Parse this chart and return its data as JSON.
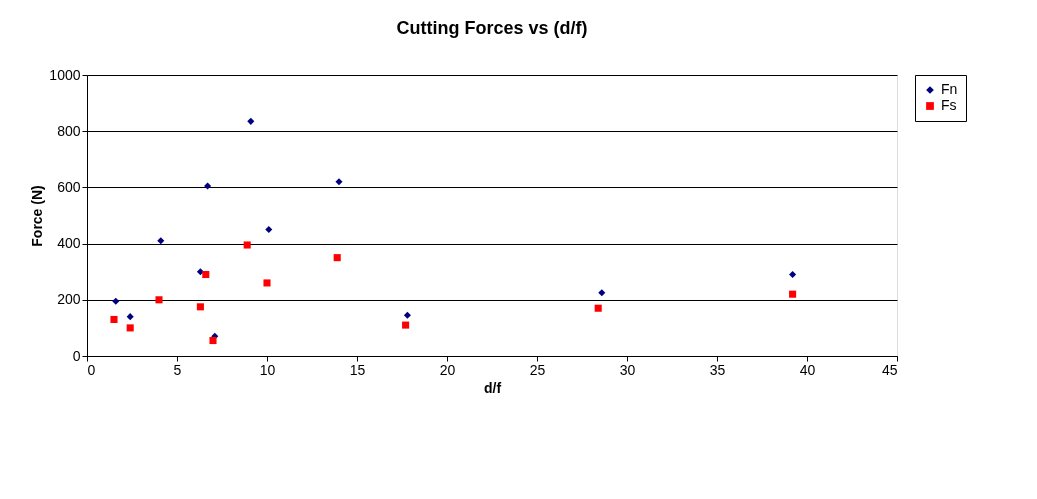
{
  "chart_data": {
    "type": "scatter",
    "title": "Cutting Forces vs (d/f)",
    "xlabel": "d/f",
    "ylabel": "Force (N)",
    "xlim": [
      0,
      45
    ],
    "xticks": [
      0,
      5,
      10,
      15,
      20,
      25,
      30,
      35,
      40,
      45
    ],
    "ylim": [
      0,
      1000
    ],
    "yticks": [
      0,
      200,
      400,
      600,
      800,
      1000
    ],
    "grid": "y",
    "legend": "right",
    "series": [
      {
        "name": "Fn",
        "color": "#000080",
        "marker": "diamond",
        "x": [
          1.6,
          2.4,
          4.1,
          6.3,
          6.7,
          7.1,
          9.1,
          10.1,
          14.0,
          17.8,
          28.6,
          39.2
        ],
        "values": [
          195,
          140,
          410,
          300,
          605,
          70,
          835,
          450,
          620,
          145,
          225,
          290
        ]
      },
      {
        "name": "Fs",
        "color": "#ff0000",
        "marker": "square",
        "x": [
          1.5,
          2.4,
          4.0,
          6.3,
          6.6,
          7.0,
          8.9,
          10.0,
          13.9,
          17.7,
          28.4,
          39.2
        ],
        "values": [
          130,
          100,
          200,
          175,
          290,
          55,
          395,
          260,
          350,
          110,
          170,
          220
        ]
      }
    ]
  }
}
